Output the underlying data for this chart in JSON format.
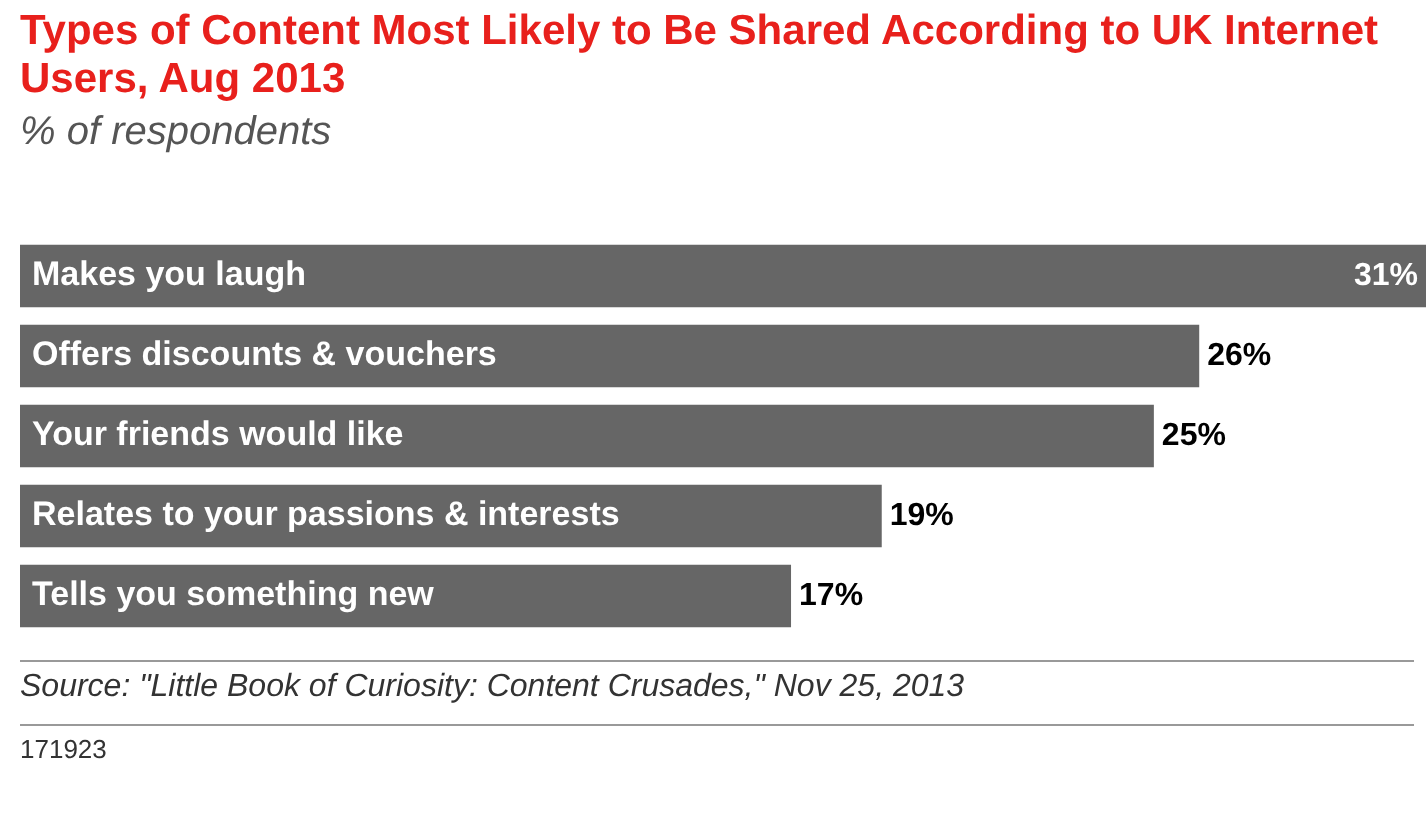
{
  "chart_data": {
    "type": "bar",
    "orientation": "horizontal",
    "title": "Types of Content Most Likely to Be Shared According to UK Internet Users, Aug 2013",
    "subtitle": "% of respondents",
    "categories": [
      "Makes you laugh",
      "Offers discounts & vouchers",
      "Your friends would like",
      "Relates to your passions & interests",
      "Tells you something new"
    ],
    "values": [
      31,
      26,
      25,
      19,
      17
    ],
    "value_labels": [
      "31%",
      "26%",
      "25%",
      "19%",
      "17%"
    ],
    "color": "#666666",
    "annotations": [
      "Source: \"Little Book of Curiosity: Content Crusades,\" Nov 25, 2013",
      "171923"
    ]
  }
}
